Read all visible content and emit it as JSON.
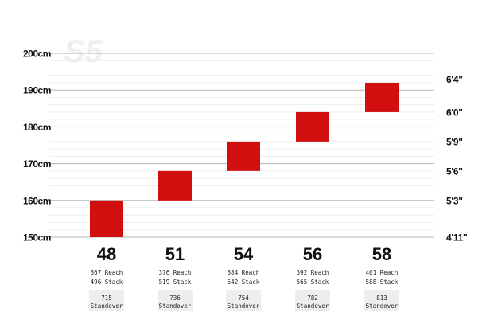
{
  "chart_data": {
    "type": "bar",
    "watermark": "S5",
    "y_unit": "cm",
    "ylim": [
      150,
      200
    ],
    "left_ticks": [
      "150cm",
      "160cm",
      "170cm",
      "180cm",
      "190cm",
      "200cm"
    ],
    "left_tick_values": [
      150,
      160,
      170,
      180,
      190,
      200
    ],
    "right_ticks": [
      "4'11\"",
      "5'3\"",
      "5'6\"",
      "5'9\"",
      "6'0\"",
      "6'4\""
    ],
    "right_tick_values": [
      150,
      160,
      168,
      176,
      184,
      193
    ],
    "grid": true,
    "bar_color": "#d10f0f",
    "categories": [
      "48",
      "51",
      "54",
      "56",
      "58"
    ],
    "rider_height_ranges": [
      [
        150,
        160
      ],
      [
        160,
        168
      ],
      [
        168,
        176
      ],
      [
        176,
        184
      ],
      [
        184,
        192
      ]
    ],
    "reach": [
      "367 Reach",
      "376 Reach",
      "384 Reach",
      "392 Reach",
      "401 Reach"
    ],
    "stack": [
      "496 Stack",
      "519 Stack",
      "542 Stack",
      "565 Stack",
      "588 Stack"
    ],
    "standover": [
      "715",
      "736",
      "754",
      "782",
      "813"
    ],
    "standover_label": "Standover"
  }
}
